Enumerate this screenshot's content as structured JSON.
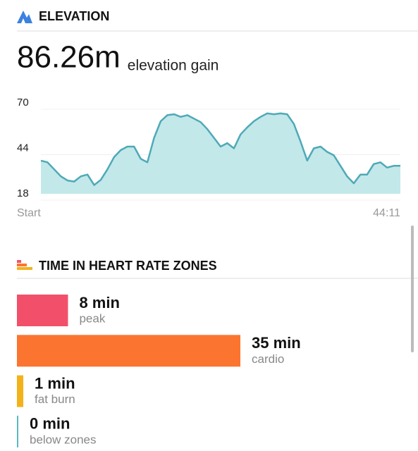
{
  "chart_data": [
    {
      "type": "area",
      "title": "ELEVATION",
      "summary": "86.26m",
      "summary_label": "elevation gain",
      "values": [
        37,
        36,
        32,
        28,
        25.6,
        25,
        28,
        29,
        23,
        26,
        32,
        39,
        43,
        45,
        45,
        38,
        36,
        50,
        59.5,
        63,
        63.5,
        62,
        63,
        61,
        59,
        55,
        50,
        45,
        47,
        44,
        52,
        56,
        59.5,
        62,
        64,
        63.5,
        64,
        63.5,
        58,
        48,
        37,
        44,
        45,
        42,
        40,
        34,
        28,
        24,
        29,
        29,
        35,
        36,
        33,
        34,
        34
      ],
      "x_labels": [
        "Start",
        "44:11"
      ],
      "ylim": [
        18,
        70
      ],
      "yticks": [
        18,
        44,
        70
      ],
      "grid": true,
      "color": "#4fa9b6",
      "fill": "#c2e8ea"
    },
    {
      "type": "hbar",
      "title": "TIME IN HEART RATE ZONES",
      "categories": [
        "peak",
        "cardio",
        "fat burn",
        "below zones"
      ],
      "values": [
        8,
        35,
        1,
        0
      ],
      "value_labels": [
        "8 min",
        "35 min",
        "1 min",
        "0 min"
      ],
      "colors": [
        "#f2506a",
        "#fb7530",
        "#f4b21a",
        "#5cb8c0"
      ]
    }
  ]
}
